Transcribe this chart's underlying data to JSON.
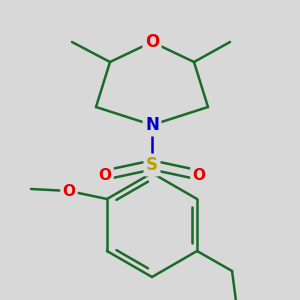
{
  "background_color": "#d8d8d8",
  "bond_color": "#1a6b2a",
  "bond_lw": 1.8,
  "atom_colors": {
    "O": "#e60000",
    "N": "#0000cc",
    "S": "#b8a000",
    "C": "#1a6b2a"
  },
  "figsize": [
    3.0,
    3.0
  ],
  "dpi": 100,
  "scale": 10.0
}
